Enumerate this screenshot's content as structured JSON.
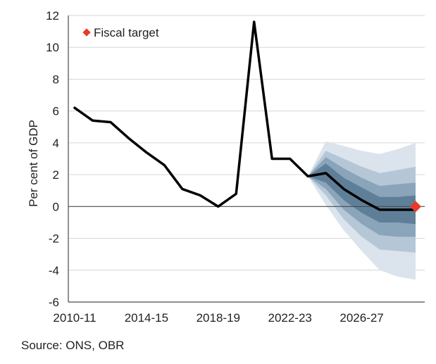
{
  "chart_data": {
    "type": "line",
    "ylabel": "Per cent of GDP",
    "ylim": [
      -6,
      12
    ],
    "yticks": [
      12,
      10,
      8,
      6,
      4,
      2,
      0,
      -2,
      -4,
      -6
    ],
    "x_tick_labels": [
      "2010-11",
      "2014-15",
      "2018-19",
      "2022-23",
      "2026-27"
    ],
    "x_tick_years": [
      2010,
      2014,
      2018,
      2022,
      2026
    ],
    "xlim": [
      2010,
      2029
    ],
    "grid": "horizontal",
    "legend": {
      "position": "top-left",
      "entries": [
        {
          "label": "Fiscal target",
          "marker": "diamond",
          "color": "#e8392a"
        }
      ]
    },
    "series": [
      {
        "kind": "line",
        "color": "#000000",
        "x": [
          2010,
          2011,
          2012,
          2013,
          2014,
          2015,
          2016,
          2017,
          2018,
          2019,
          2020,
          2021,
          2022,
          2023,
          2024,
          2025,
          2026,
          2027,
          2028,
          2029
        ],
        "y": [
          6.2,
          5.4,
          5.3,
          4.3,
          3.4,
          2.6,
          1.1,
          0.7,
          0.0,
          0.8,
          11.6,
          3.0,
          3.0,
          1.9,
          2.1,
          1.1,
          0.4,
          -0.2,
          -0.2,
          -0.2
        ]
      }
    ],
    "fan": {
      "x": [
        2023,
        2024,
        2025,
        2026,
        2027,
        2028,
        2029
      ],
      "center": [
        1.9,
        2.1,
        1.1,
        0.4,
        -0.2,
        -0.2,
        -0.2
      ],
      "bands": [
        {
          "upper": [
            1.9,
            4.1,
            3.8,
            3.5,
            3.3,
            3.6,
            4.0
          ],
          "lower": [
            1.9,
            0.1,
            -1.5,
            -2.8,
            -4.0,
            -4.4,
            -4.6
          ],
          "color": "#dbe4ec"
        },
        {
          "upper": [
            1.9,
            3.5,
            3.0,
            2.5,
            2.1,
            2.3,
            2.5
          ],
          "lower": [
            1.9,
            0.7,
            -0.8,
            -1.9,
            -2.7,
            -2.8,
            -2.9
          ],
          "color": "#b5c7d6"
        },
        {
          "upper": [
            1.9,
            3.1,
            2.4,
            1.8,
            1.3,
            1.4,
            1.5
          ],
          "lower": [
            1.9,
            1.1,
            -0.2,
            -1.1,
            -1.8,
            -1.9,
            -1.9
          ],
          "color": "#8aa4ba"
        },
        {
          "upper": [
            1.9,
            2.7,
            1.8,
            1.2,
            0.6,
            0.6,
            0.7
          ],
          "lower": [
            1.9,
            1.5,
            0.4,
            -0.4,
            -1.0,
            -1.0,
            -1.1
          ],
          "color": "#5f7f99"
        }
      ]
    },
    "target": {
      "x": 2029,
      "y": 0,
      "color": "#e8392a"
    }
  },
  "legend_label": "Fiscal target",
  "source_text": "Source: ONS, OBR"
}
